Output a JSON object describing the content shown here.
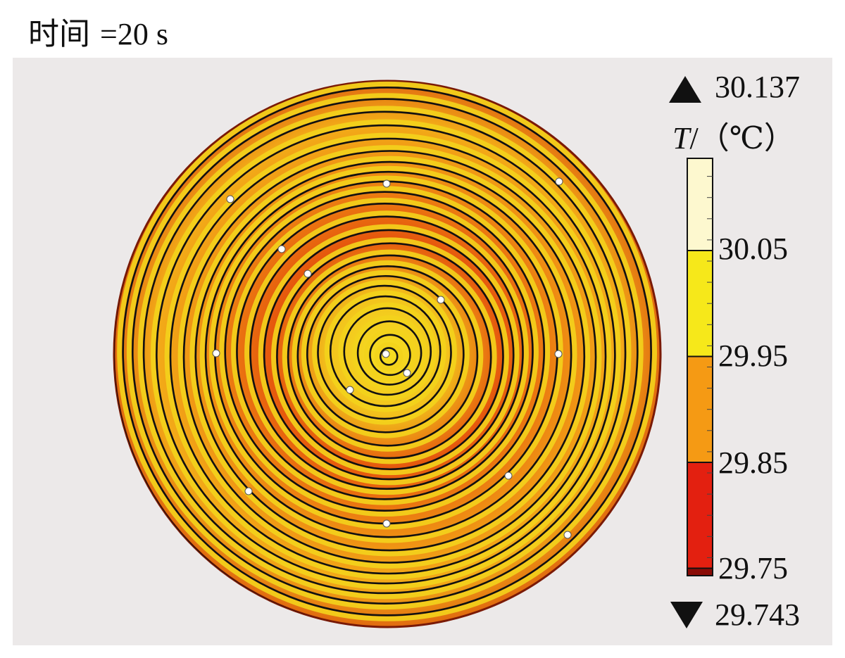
{
  "title": {
    "prefix": "时间",
    "value": "=20 s"
  },
  "colorbar": {
    "max_label": "30.137",
    "min_label": "29.743",
    "unit_symbol": "T",
    "unit_suffix": "/（℃）",
    "ticks": [
      "30.05",
      "29.95",
      "29.85",
      "29.75"
    ],
    "color_bands": [
      {
        "from": 30.05,
        "to": 30.137,
        "color": "#fdf8cf"
      },
      {
        "from": 29.95,
        "to": 30.05,
        "color": "#f6e81a"
      },
      {
        "from": 29.85,
        "to": 29.95,
        "color": "#f59a14"
      },
      {
        "from": 29.75,
        "to": 29.85,
        "color": "#e32010"
      },
      {
        "from": 29.743,
        "to": 29.75,
        "color": "#8a0c06"
      }
    ]
  },
  "colors": {
    "channel_line": "#111111",
    "disc_hot": "#f3d31c",
    "disc_warm": "#f08a12",
    "disc_cool": "#d6400a",
    "probe_point": "#ffffff"
  }
}
